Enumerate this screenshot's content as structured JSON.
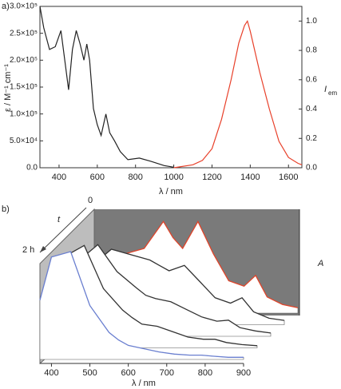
{
  "chart_data": [
    {
      "type": "line",
      "panel_label": "a)",
      "xlabel": "λ / nm",
      "ylabel": "ε / M⁻¹ cm⁻¹",
      "y2label": {
        "main": "I",
        "sub": "em"
      },
      "xlim": [
        300,
        1670
      ],
      "xticks": [
        400,
        600,
        800,
        1000,
        1200,
        1400,
        1600
      ],
      "ylim": [
        0,
        300000
      ],
      "yticks": [
        {
          "value": 0,
          "label": "0.0"
        },
        {
          "value": 50000,
          "label": "5.0×10⁴"
        },
        {
          "value": 100000,
          "label": "1.0×10⁵"
        },
        {
          "value": 150000,
          "label": "1.5×10⁵"
        },
        {
          "value": 200000,
          "label": "2.0×10⁵"
        },
        {
          "value": 250000,
          "label": "2.5×10⁵"
        },
        {
          "value": 300000,
          "label": "3.0×10⁵"
        }
      ],
      "y2lim": [
        0,
        1.1
      ],
      "y2ticks": [
        {
          "value": 0,
          "label": "0.0"
        },
        0.2,
        0.4,
        0.6,
        0.8,
        {
          "value": 1,
          "label": "1.0"
        }
      ],
      "series": [
        {
          "color": "#222222",
          "x": [
            300,
            320,
            350,
            380,
            410,
            430,
            450,
            470,
            490,
            510,
            530,
            545,
            560,
            580,
            600,
            620,
            645,
            665,
            690,
            720,
            760,
            820,
            880,
            950,
            1000
          ],
          "values": [
            300000,
            260000,
            220000,
            225000,
            255000,
            200000,
            145000,
            220000,
            255000,
            230000,
            200000,
            230000,
            200000,
            110000,
            80000,
            60000,
            100000,
            65000,
            50000,
            30000,
            15000,
            18000,
            12000,
            4000,
            1000
          ]
        },
        {
          "color": "#e8402a",
          "axis": "y2",
          "x": [
            1000,
            1100,
            1150,
            1200,
            1250,
            1300,
            1340,
            1370,
            1385,
            1400,
            1450,
            1500,
            1550,
            1600,
            1650,
            1670
          ],
          "values": [
            0,
            0.02,
            0.05,
            0.13,
            0.33,
            0.6,
            0.85,
            0.97,
            1.0,
            0.93,
            0.65,
            0.4,
            0.18,
            0.07,
            0.03,
            0.02
          ]
        }
      ]
    },
    {
      "type": "waterfall",
      "panel_label": "b)",
      "xlabel": "λ / nm",
      "ylabel": "A",
      "zlabel": "t",
      "z_start": "0",
      "z_end": "2 h",
      "x": [
        370,
        400,
        450,
        500,
        550,
        575,
        600,
        640,
        680,
        720,
        760,
        790,
        820,
        860,
        900
      ],
      "xlim": [
        370,
        900
      ],
      "xticks": [
        400,
        500,
        600,
        700,
        800,
        900
      ],
      "ylim": [
        0,
        1
      ],
      "series": [
        {
          "color": "#e0452b",
          "values": [
            0.35,
            0.45,
            0.55,
            0.6,
            0.85,
            0.7,
            0.6,
            0.85,
            0.55,
            0.3,
            0.25,
            0.35,
            0.15,
            0.08,
            0.05
          ]
        },
        {
          "color": "#333333",
          "values": [
            0.4,
            0.55,
            0.7,
            0.65,
            0.6,
            0.55,
            0.5,
            0.55,
            0.4,
            0.25,
            0.2,
            0.25,
            0.12,
            0.06,
            0.04
          ]
        },
        {
          "color": "#333333",
          "values": [
            0.45,
            0.7,
            0.85,
            0.6,
            0.45,
            0.38,
            0.35,
            0.32,
            0.25,
            0.18,
            0.14,
            0.15,
            0.08,
            0.05,
            0.03
          ]
        },
        {
          "color": "#333333",
          "values": [
            0.5,
            0.85,
            0.95,
            0.55,
            0.35,
            0.28,
            0.22,
            0.2,
            0.15,
            0.1,
            0.08,
            0.08,
            0.05,
            0.03,
            0.02
          ]
        },
        {
          "color": "#6a7fd0",
          "values": [
            0.55,
            0.95,
            1.0,
            0.5,
            0.25,
            0.18,
            0.13,
            0.1,
            0.07,
            0.05,
            0.04,
            0.04,
            0.03,
            0.02,
            0.02
          ]
        }
      ]
    }
  ]
}
